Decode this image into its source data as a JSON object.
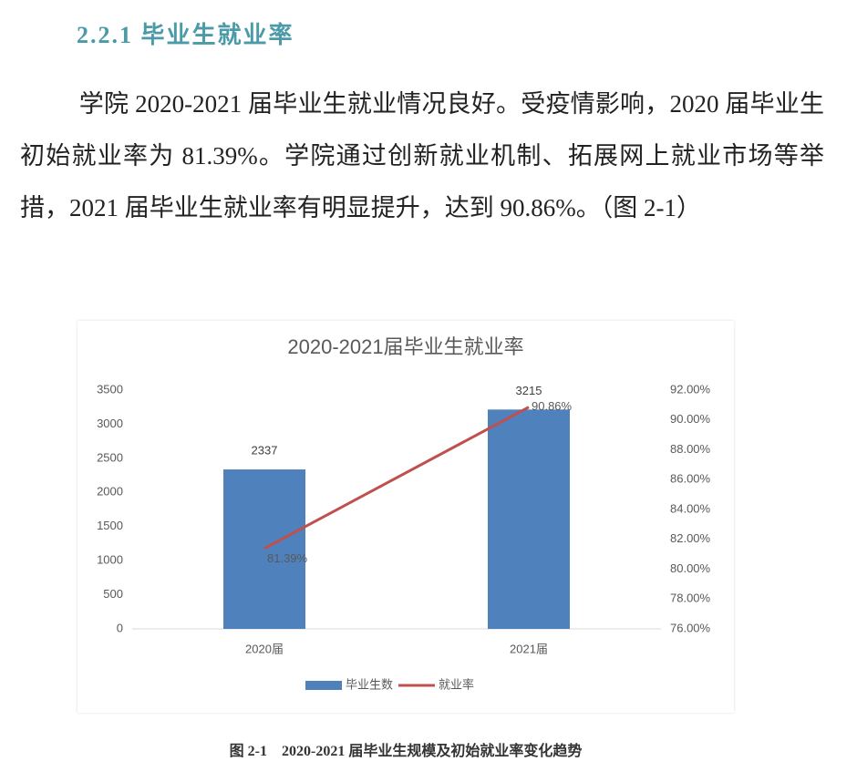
{
  "heading": "2.2.1 毕业生就业率",
  "paragraph": "学院 2020-2021 届毕业生就业情况良好。受疫情影响，2020 届毕业生初始就业率为 81.39%。学院通过创新就业机制、拓展网上就业市场等举措，2021 届毕业生就业率有明显提升，达到 90.86%。（图 2-1）",
  "chart_data": {
    "type": "bar",
    "title": "2020-2021届毕业生就业率",
    "categories": [
      "2020届",
      "2021届"
    ],
    "series": [
      {
        "name": "毕业生数",
        "type": "bar",
        "color": "#4f81bd",
        "values": [
          2337,
          3215
        ]
      },
      {
        "name": "就业率",
        "type": "line",
        "color": "#c0504d",
        "axis": "y2",
        "values": [
          81.39,
          90.86
        ],
        "value_labels": [
          "81.39%",
          "90.86%"
        ]
      }
    ],
    "ylim": [
      0,
      3500
    ],
    "yticks": [
      0,
      500,
      1000,
      1500,
      2000,
      2500,
      3000,
      3500
    ],
    "y2lim": [
      76,
      92
    ],
    "y2ticks": [
      {
        "value": 76,
        "label": "76.00%"
      },
      {
        "value": 78,
        "label": "78.00%"
      },
      {
        "value": 80,
        "label": "80.00%"
      },
      {
        "value": 82,
        "label": "82.00%"
      },
      {
        "value": 84,
        "label": "84.00%"
      },
      {
        "value": 86,
        "label": "86.00%"
      },
      {
        "value": 88,
        "label": "88.00%"
      },
      {
        "value": 90,
        "label": "90.00%"
      },
      {
        "value": 92,
        "label": "92.00%"
      }
    ],
    "legend": "bottom"
  },
  "caption": "图 2-1　2020-2021 届毕业生规模及初始就业率变化趋势"
}
